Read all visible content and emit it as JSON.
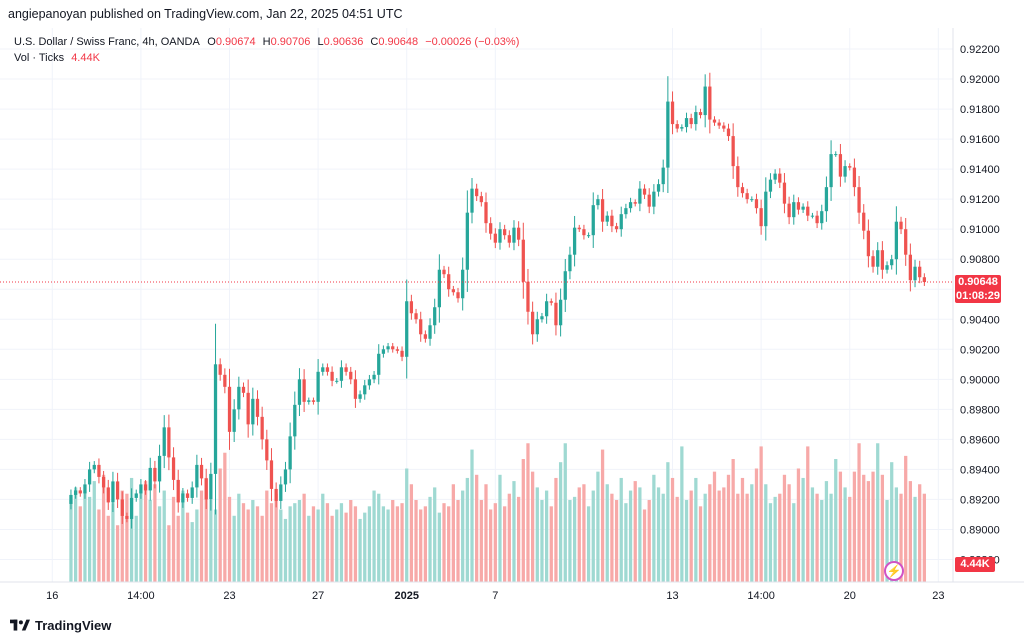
{
  "header": {
    "published": "angiepanoyan published on TradingView.com, Jan 22, 2025 04:51 UTC"
  },
  "legend": {
    "symbol": "U.S. Dollar / Swiss Franc, 4h, OANDA",
    "o_label": "O",
    "o_value": "0.90674",
    "h_label": "H",
    "h_value": "0.90706",
    "l_label": "L",
    "l_value": "0.90636",
    "c_label": "C",
    "c_value": "0.90648",
    "change": "−0.00026 (−0.03%)",
    "vol_label": "Vol · Ticks",
    "vol_value": "4.44K"
  },
  "price_tag": {
    "price": "0.90648",
    "countdown": "01:08:29"
  },
  "volume_tag": "4.44K",
  "footer": {
    "brand": "TradingView"
  },
  "colors": {
    "up": "#26a69a",
    "down": "#ef5350",
    "vol_up": "#9fd9d2",
    "vol_down": "#f7a9a8",
    "last_price": "#f23645",
    "flash": "#d152c4"
  },
  "icons": {
    "flash": "lightning-icon"
  },
  "chart_data": {
    "type": "candlestick",
    "y_ticks": [
      "0.92200",
      "0.92000",
      "0.91800",
      "0.91600",
      "0.91400",
      "0.91200",
      "0.91000",
      "0.90800",
      "0.90600",
      "0.90400",
      "0.90200",
      "0.90000",
      "0.89800",
      "0.89600",
      "0.89400",
      "0.89200",
      "0.89000",
      "0.88800"
    ],
    "ylim": [
      0.8865,
      0.9234
    ],
    "x_ticks": [
      {
        "label": "16",
        "i": 9
      },
      {
        "label": "14:00",
        "i": 28
      },
      {
        "label": "23",
        "i": 47
      },
      {
        "label": "27",
        "i": 66
      },
      {
        "label": "2025",
        "i": 85,
        "bold": true
      },
      {
        "label": "7",
        "i": 104
      },
      {
        "label": "13",
        "i": 142
      },
      {
        "label": "14:00",
        "i": 161
      },
      {
        "label": "20",
        "i": 180
      },
      {
        "label": "23",
        "i": 199
      }
    ],
    "n_slots": 202,
    "last_price": 0.90648,
    "closes": [
      0.8923,
      0.8926,
      0.8924,
      0.893,
      0.894,
      0.8943,
      0.8935,
      0.8928,
      0.8918,
      0.8932,
      0.892,
      0.8909,
      0.8907,
      0.8921,
      0.8924,
      0.893,
      0.8926,
      0.8941,
      0.8932,
      0.8949,
      0.8968,
      0.8948,
      0.8933,
      0.8918,
      0.8924,
      0.8921,
      0.8928,
      0.8943,
      0.8934,
      0.892,
      0.8937,
      0.901,
      0.9003,
      0.8995,
      0.8965,
      0.898,
      0.8995,
      0.8991,
      0.897,
      0.8987,
      0.8975,
      0.896,
      0.8946,
      0.8927,
      0.8919,
      0.893,
      0.894,
      0.8962,
      0.8983,
      0.9,
      0.8985,
      0.8986,
      0.8985,
      0.9005,
      0.9008,
      0.9005,
      0.8999,
      0.8999,
      0.9008,
      0.9005,
      0.9,
      0.8987,
      0.899,
      0.8996,
      0.9,
      0.9003,
      0.9017,
      0.902,
      0.9022,
      0.902,
      0.9019,
      0.9015,
      0.9052,
      0.9044,
      0.904,
      0.903,
      0.9027,
      0.9036,
      0.9048,
      0.9073,
      0.907,
      0.906,
      0.9058,
      0.9054,
      0.9073,
      0.9111,
      0.9127,
      0.9122,
      0.9118,
      0.9104,
      0.9097,
      0.9091,
      0.91,
      0.9096,
      0.9091,
      0.9101,
      0.9093,
      0.9065,
      0.9045,
      0.903,
      0.904,
      0.9042,
      0.9052,
      0.9051,
      0.9036,
      0.9053,
      0.9072,
      0.9083,
      0.9101,
      0.91,
      0.9096,
      0.9096,
      0.9116,
      0.912,
      0.9105,
      0.9109,
      0.9102,
      0.91,
      0.911,
      0.9114,
      0.9118,
      0.9117,
      0.9127,
      0.9123,
      0.9115,
      0.9125,
      0.913,
      0.9141,
      0.9185,
      0.917,
      0.9167,
      0.9168,
      0.9174,
      0.917,
      0.9178,
      0.9176,
      0.9195,
      0.9173,
      0.9171,
      0.9169,
      0.9167,
      0.9162,
      0.9142,
      0.9128,
      0.9124,
      0.912,
      0.912,
      0.9114,
      0.9102,
      0.9125,
      0.9133,
      0.9137,
      0.9131,
      0.9117,
      0.9108,
      0.9118,
      0.9113,
      0.9115,
      0.9109,
      0.9109,
      0.9104,
      0.9112,
      0.9128,
      0.915,
      0.915,
      0.9135,
      0.9142,
      0.9141,
      0.9128,
      0.9111,
      0.9099,
      0.9082,
      0.9075,
      0.9086,
      0.9073,
      0.9076,
      0.908,
      0.9105,
      0.91,
      0.9083,
      0.9066,
      0.9075,
      0.9068,
      0.90648
    ],
    "volumes": [
      2600,
      3000,
      2400,
      2900,
      2700,
      3200,
      2300,
      3400,
      2100,
      2500,
      1800,
      2900,
      2800,
      3300,
      2100,
      2900,
      3200,
      2600,
      3100,
      2400,
      2900,
      1800,
      2700,
      2100,
      2900,
      2200,
      1900,
      2300,
      2900,
      3300,
      2600,
      2300,
      3600,
      4100,
      2700,
      2100,
      2800,
      2500,
      2300,
      2600,
      2400,
      2100,
      2900,
      2500,
      2800,
      2300,
      2000,
      2400,
      2500,
      2600,
      2800,
      2100,
      2400,
      2300,
      2800,
      2500,
      2100,
      2300,
      2500,
      2200,
      2600,
      2400,
      2000,
      2200,
      2400,
      2900,
      2800,
      2400,
      2300,
      2600,
      2400,
      2500,
      3600,
      3100,
      2600,
      2300,
      2400,
      2700,
      3000,
      2200,
      2500,
      2400,
      3100,
      2600,
      2900,
      3300,
      4200,
      3400,
      2600,
      3100,
      2300,
      2500,
      3400,
      2400,
      2800,
      3200,
      2700,
      3900,
      4400,
      3500,
      3000,
      2600,
      2900,
      2400,
      3300,
      3800,
      4400,
      2600,
      2700,
      3000,
      3100,
      2400,
      2900,
      3500,
      4200,
      3100,
      2800,
      2600,
      3300,
      2500,
      2900,
      3200,
      3000,
      2300,
      2600,
      3400,
      3000,
      2800,
      3800,
      3300,
      2700,
      4300,
      2600,
      2900,
      3300,
      2400,
      2800,
      3100,
      3500,
      2900,
      3000,
      3400,
      3900,
      2800,
      3300,
      2800,
      3100,
      3600,
      4300,
      3100,
      2500,
      2700,
      2800,
      3400,
      3100,
      2500,
      3600,
      3300,
      4300,
      3000,
      2800,
      2600,
      3200,
      2800,
      3900,
      3500,
      3000,
      2700,
      3500,
      4400,
      3400,
      3200,
      3500,
      4400,
      3400,
      2600,
      3800,
      3000,
      2800,
      4000,
      3200,
      2700,
      3100,
      2800,
      2600,
      3300,
      2800,
      4200,
      3400,
      2800,
      3800,
      3100,
      4440
    ]
  }
}
